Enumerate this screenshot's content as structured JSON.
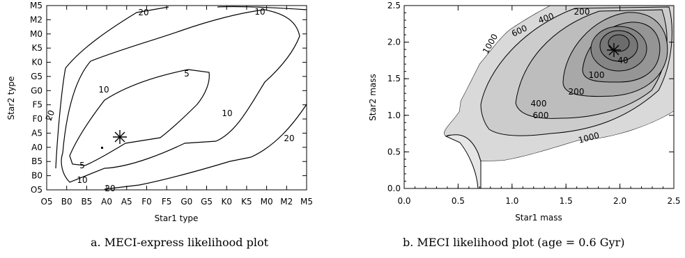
{
  "chart_data": [
    {
      "type": "contour",
      "caption": "a. MECI-express likelihood plot",
      "xlabel": "Star1 type",
      "ylabel": "Star2 type",
      "categories": [
        "O5",
        "B0",
        "B5",
        "A0",
        "A5",
        "F0",
        "F5",
        "G0",
        "G5",
        "K0",
        "K5",
        "M0",
        "M2",
        "M5"
      ],
      "filled": false,
      "levels": [
        5,
        10,
        20
      ],
      "contour_labels": [
        "20",
        "10",
        "5",
        "10",
        "10",
        "20",
        "5",
        "10",
        "20",
        "10",
        "20"
      ],
      "marker": {
        "symbol": "asterisk",
        "x": "A5",
        "y": "A5"
      },
      "grid": false
    },
    {
      "type": "contour",
      "caption": "b. MECI likelihood plot (age = 0.6 Gyr)",
      "xlabel": "Star1 mass",
      "ylabel": "Star2 mass",
      "xlim": [
        0.0,
        2.5
      ],
      "ylim": [
        0.0,
        2.5
      ],
      "xticks": [
        "0.0",
        "0.5",
        "1.0",
        "1.5",
        "2.0",
        "2.5"
      ],
      "yticks": [
        "0.0",
        "0.5",
        "1.0",
        "1.5",
        "2.0",
        "2.5"
      ],
      "filled": true,
      "levels": [
        40,
        100,
        200,
        400,
        600,
        1000
      ],
      "contour_labels": [
        "1000",
        "600",
        "400",
        "200",
        "100",
        "40",
        "200",
        "400",
        "600",
        "1000"
      ],
      "peak": {
        "x": 1.93,
        "y": 1.9
      },
      "marker": {
        "symbol": "asterisk",
        "x": 1.93,
        "y": 1.87
      },
      "grid": false
    }
  ]
}
